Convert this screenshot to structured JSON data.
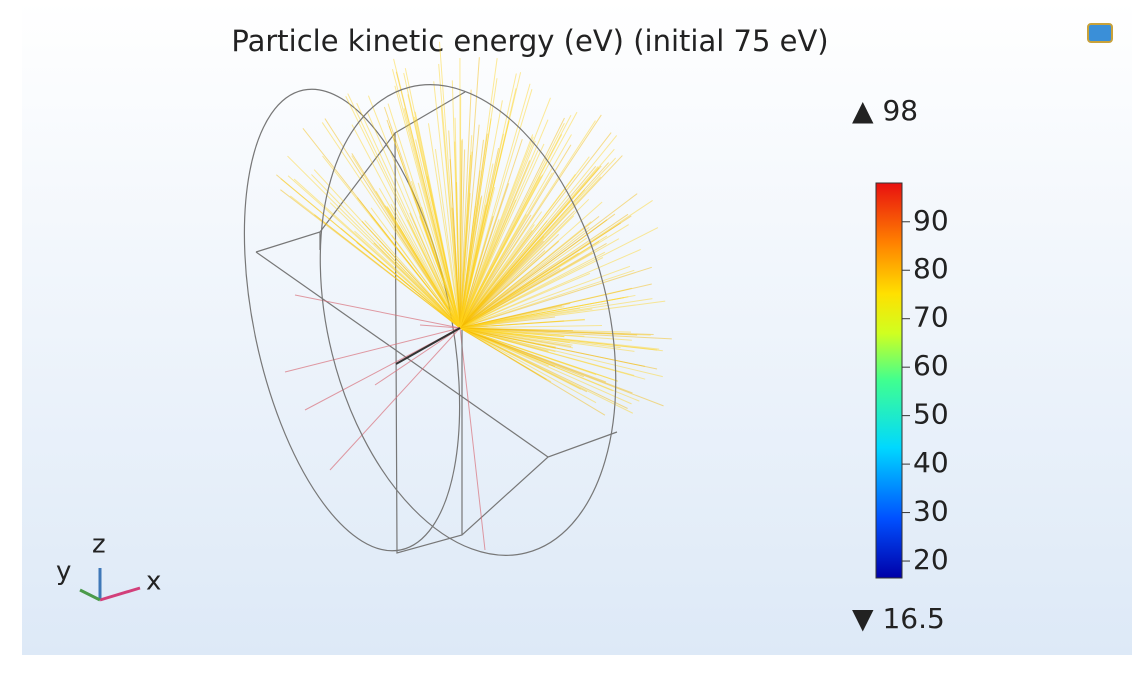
{
  "title": "Particle kinetic energy (eV) (initial 75 eV)",
  "colorbar": {
    "max": 98,
    "min": 16.5,
    "ticks": [
      20,
      30,
      40,
      50,
      60,
      70,
      80,
      90
    ]
  },
  "axes": {
    "x": "x",
    "y": "y",
    "z": "z"
  }
}
